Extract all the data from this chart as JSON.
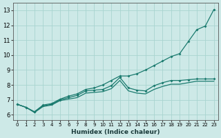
{
  "xlabel": "Humidex (Indice chaleur)",
  "xlim": [
    -0.5,
    23.5
  ],
  "ylim": [
    5.65,
    13.5
  ],
  "xticks": [
    0,
    1,
    2,
    3,
    4,
    5,
    6,
    7,
    8,
    9,
    10,
    11,
    12,
    13,
    14,
    15,
    16,
    17,
    18,
    19,
    20,
    21,
    22,
    23
  ],
  "yticks": [
    6,
    7,
    8,
    9,
    10,
    11,
    12,
    13
  ],
  "bg_color": "#cde9e7",
  "grid_color": "#a8d4d0",
  "line_color": "#1a7a6e",
  "line_top_x": [
    0,
    1,
    2,
    3,
    4,
    5,
    6,
    7,
    8,
    9,
    10,
    11,
    12,
    13,
    14,
    15,
    16,
    17,
    18,
    19,
    20,
    21,
    22,
    23
  ],
  "line_top_y": [
    6.7,
    6.5,
    6.2,
    6.65,
    6.75,
    7.05,
    7.25,
    7.4,
    7.7,
    7.8,
    8.0,
    8.3,
    8.6,
    8.6,
    8.75,
    9.0,
    9.3,
    9.6,
    9.9,
    10.1,
    10.9,
    11.7,
    11.95,
    13.05
  ],
  "line_mid_x": [
    0,
    1,
    2,
    3,
    4,
    5,
    6,
    7,
    8,
    9,
    10,
    11,
    12,
    13,
    14,
    15,
    16,
    17,
    18,
    19,
    20,
    21,
    22,
    23
  ],
  "line_mid_y": [
    6.7,
    6.5,
    6.2,
    6.6,
    6.7,
    7.0,
    7.15,
    7.3,
    7.6,
    7.65,
    7.7,
    7.95,
    8.5,
    7.8,
    7.65,
    7.6,
    7.95,
    8.15,
    8.3,
    8.3,
    8.35,
    8.4,
    8.4,
    8.4
  ],
  "line_bot_x": [
    0,
    1,
    2,
    3,
    4,
    5,
    6,
    7,
    8,
    9,
    10,
    11,
    12,
    13,
    14,
    15,
    16,
    17,
    18,
    19,
    20,
    21,
    22,
    23
  ],
  "line_bot_y": [
    6.7,
    6.5,
    6.15,
    6.55,
    6.65,
    6.95,
    7.05,
    7.15,
    7.45,
    7.5,
    7.55,
    7.75,
    8.3,
    7.6,
    7.45,
    7.4,
    7.7,
    7.9,
    8.05,
    8.05,
    8.15,
    8.25,
    8.25,
    8.25
  ]
}
